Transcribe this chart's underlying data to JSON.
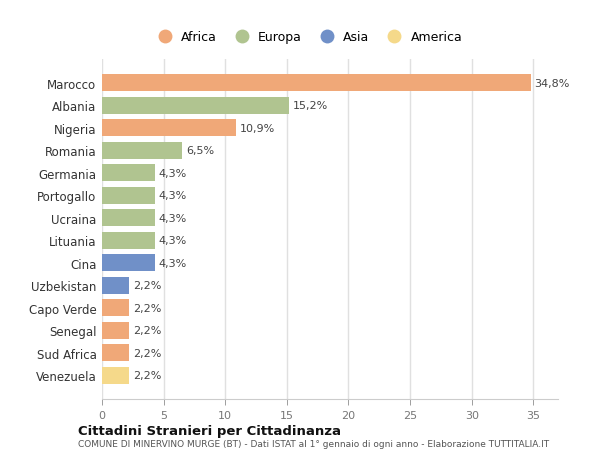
{
  "countries": [
    "Venezuela",
    "Sud Africa",
    "Senegal",
    "Capo Verde",
    "Uzbekistan",
    "Cina",
    "Lituania",
    "Ucraina",
    "Portogallo",
    "Germania",
    "Romania",
    "Nigeria",
    "Albania",
    "Marocco"
  ],
  "values": [
    2.2,
    2.2,
    2.2,
    2.2,
    2.2,
    4.3,
    4.3,
    4.3,
    4.3,
    4.3,
    6.5,
    10.9,
    15.2,
    34.8
  ],
  "labels": [
    "2,2%",
    "2,2%",
    "2,2%",
    "2,2%",
    "2,2%",
    "4,3%",
    "4,3%",
    "4,3%",
    "4,3%",
    "4,3%",
    "6,5%",
    "10,9%",
    "15,2%",
    "34,8%"
  ],
  "colors": [
    "#f5d98a",
    "#f0a878",
    "#f0a878",
    "#f0a878",
    "#7090c8",
    "#7090c8",
    "#b0c490",
    "#b0c490",
    "#b0c490",
    "#b0c490",
    "#b0c490",
    "#f0a878",
    "#b0c490",
    "#f0a878"
  ],
  "legend_labels": [
    "Africa",
    "Europa",
    "Asia",
    "America"
  ],
  "legend_colors": [
    "#f0a878",
    "#b0c490",
    "#7090c8",
    "#f5d98a"
  ],
  "title1": "Cittadini Stranieri per Cittadinanza",
  "title2": "COMUNE DI MINERVINO MURGE (BT) - Dati ISTAT al 1° gennaio di ogni anno - Elaborazione TUTTITALIA.IT",
  "xlim": [
    0,
    37
  ],
  "xticks": [
    0,
    5,
    10,
    15,
    20,
    25,
    30,
    35
  ],
  "bg_color": "#ffffff",
  "plot_bg_color": "#ffffff",
  "bar_height": 0.75
}
